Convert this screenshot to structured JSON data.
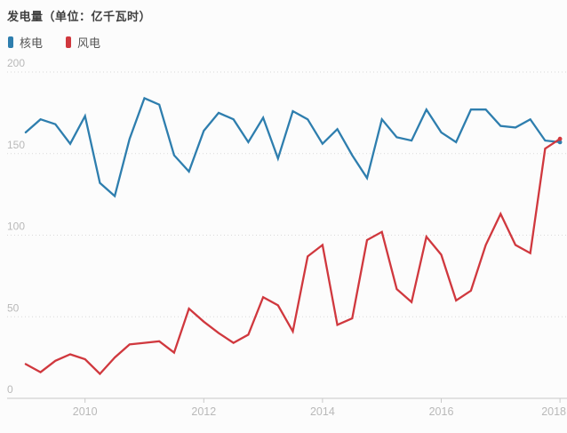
{
  "header": {
    "title": "发电量（单位：亿千瓦时）"
  },
  "legend": {
    "items": [
      {
        "label": "核电",
        "color": "#2e7eae"
      },
      {
        "label": "风电",
        "color": "#d0383e"
      }
    ]
  },
  "colors": {
    "background": "#fcfcfc",
    "title_text": "#3f3f3f",
    "legend_text": "#555555",
    "axis_text": "#b9b9b9",
    "gridline": "#d9d9d9",
    "axis_line": "#c9c9c9",
    "nuclear_line": "#2e7eae",
    "wind_line": "#d0383e"
  },
  "chart_data": {
    "type": "line",
    "title": "发电量（单位：亿千瓦时）",
    "unit": "亿千瓦时",
    "frequency": "quarterly",
    "ylim": [
      0,
      200
    ],
    "y_ticks": [
      0,
      50,
      100,
      150,
      200
    ],
    "x_tick_labels": [
      "2010",
      "2012",
      "2014",
      "2016",
      "2018"
    ],
    "x_tick_years": [
      2010,
      2012,
      2014,
      2016,
      2018
    ],
    "grid": "horizontal-dotted",
    "legend_position": "top-left",
    "x": [
      "2009Q1",
      "2009Q2",
      "2009Q3",
      "2009Q4",
      "2010Q1",
      "2010Q2",
      "2010Q3",
      "2010Q4",
      "2011Q1",
      "2011Q2",
      "2011Q3",
      "2011Q4",
      "2012Q1",
      "2012Q2",
      "2012Q3",
      "2012Q4",
      "2013Q1",
      "2013Q2",
      "2013Q3",
      "2013Q4",
      "2014Q1",
      "2014Q2",
      "2014Q3",
      "2014Q4",
      "2015Q1",
      "2015Q2",
      "2015Q3",
      "2015Q4",
      "2016Q1",
      "2016Q2",
      "2016Q3",
      "2016Q4",
      "2017Q1",
      "2017Q2",
      "2017Q3",
      "2017Q4",
      "2018Q1"
    ],
    "series": [
      {
        "name": "核电",
        "color": "#2e7eae",
        "values": [
          163,
          171,
          168,
          156,
          173,
          132,
          124,
          159,
          184,
          180,
          149,
          139,
          164,
          175,
          171,
          157,
          172,
          147,
          176,
          171,
          156,
          165,
          149,
          135,
          171,
          160,
          158,
          177,
          163,
          157,
          177,
          177,
          167,
          166,
          171,
          158,
          157
        ]
      },
      {
        "name": "风电",
        "color": "#d0383e",
        "values": [
          21,
          16,
          23,
          27,
          24,
          15,
          25,
          33,
          34,
          35,
          28,
          55,
          47,
          40,
          34,
          39,
          62,
          57,
          41,
          87,
          94,
          45,
          49,
          97,
          102,
          67,
          59,
          99,
          88,
          60,
          66,
          94,
          113,
          94,
          89,
          153,
          159
        ]
      }
    ]
  }
}
